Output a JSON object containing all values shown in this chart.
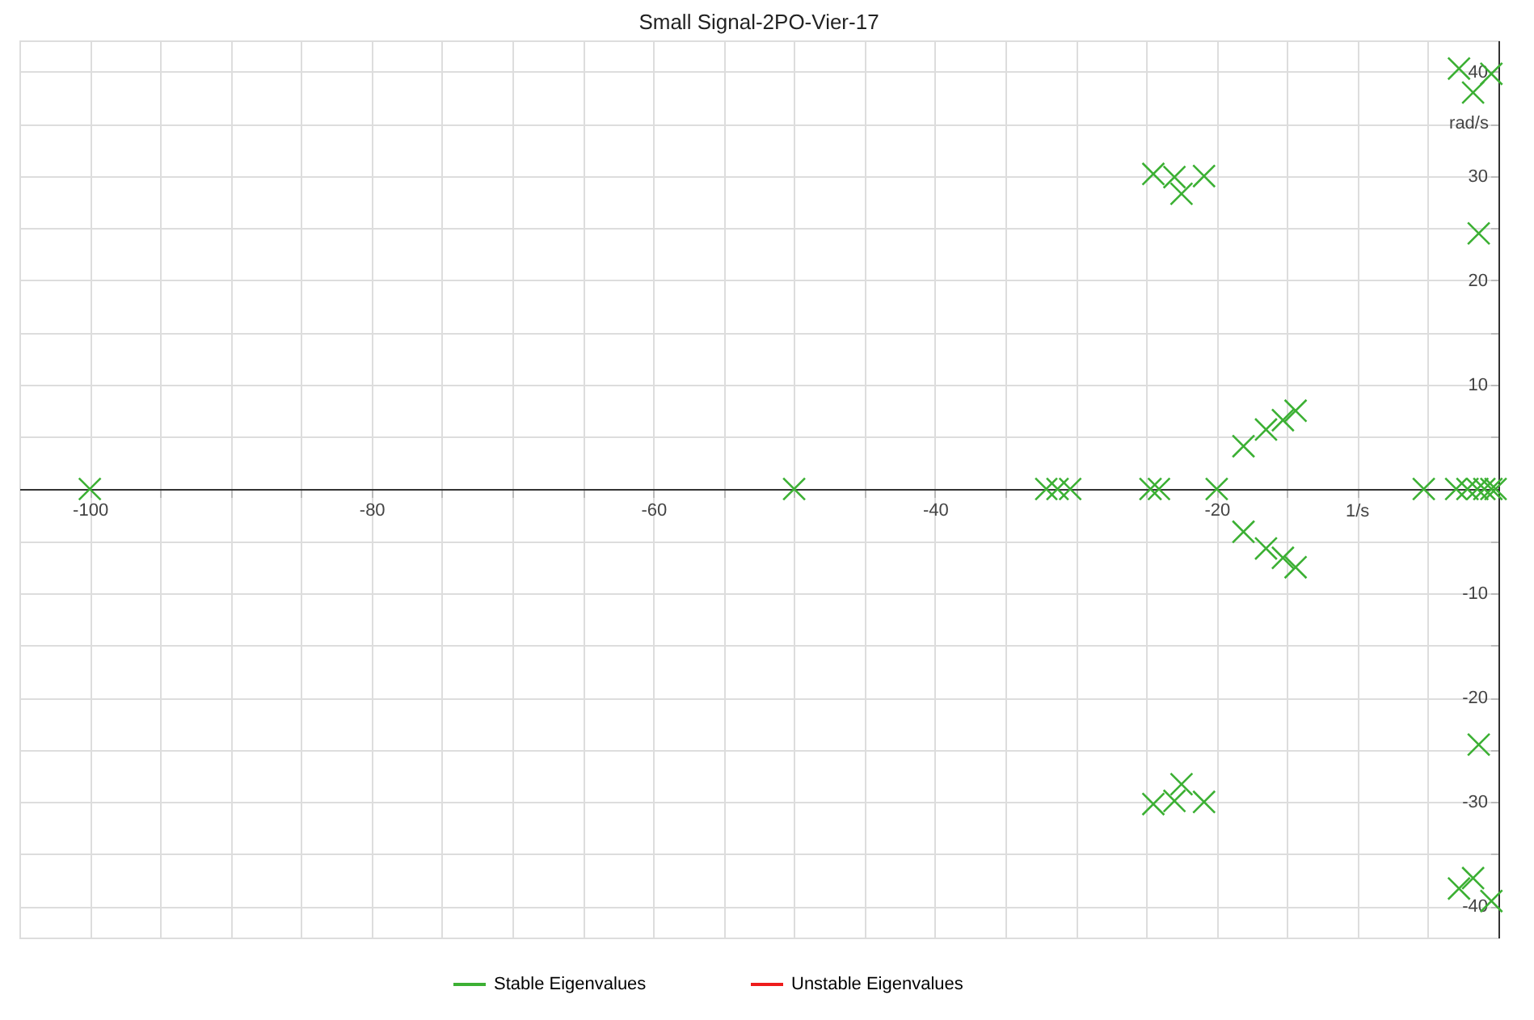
{
  "chart_data": {
    "type": "scatter",
    "title": "Small Signal-2PO-Vier-17",
    "xlim": [
      -105,
      0
    ],
    "ylim": [
      -43,
      43
    ],
    "xticks": [
      {
        "value": -100,
        "label": "-100"
      },
      {
        "value": -95,
        "label": null
      },
      {
        "value": -90,
        "label": null
      },
      {
        "value": -85,
        "label": null
      },
      {
        "value": -80,
        "label": "-80"
      },
      {
        "value": -75,
        "label": null
      },
      {
        "value": -70,
        "label": null
      },
      {
        "value": -65,
        "label": null
      },
      {
        "value": -60,
        "label": "-60"
      },
      {
        "value": -55,
        "label": null
      },
      {
        "value": -50,
        "label": null
      },
      {
        "value": -45,
        "label": null
      },
      {
        "value": -40,
        "label": "-40"
      },
      {
        "value": -35,
        "label": null
      },
      {
        "value": -30,
        "label": null
      },
      {
        "value": -25,
        "label": null
      },
      {
        "value": -20,
        "label": "-20"
      },
      {
        "value": -15,
        "label": null
      },
      {
        "value": -10,
        "label": null
      },
      {
        "value": -5,
        "label": null
      }
    ],
    "yticks": [
      {
        "value": -40,
        "label": "-40"
      },
      {
        "value": -35,
        "label": null
      },
      {
        "value": -30,
        "label": "-30"
      },
      {
        "value": -25,
        "label": null
      },
      {
        "value": -20,
        "label": "-20"
      },
      {
        "value": -15,
        "label": null
      },
      {
        "value": -10,
        "label": "-10"
      },
      {
        "value": -5,
        "label": null
      },
      {
        "value": 5,
        "label": null
      },
      {
        "value": 10,
        "label": "10"
      },
      {
        "value": 15,
        "label": null
      },
      {
        "value": 20,
        "label": "20"
      },
      {
        "value": 25,
        "label": null
      },
      {
        "value": 30,
        "label": "30"
      },
      {
        "value": 35,
        "label": null
      },
      {
        "value": 40,
        "label": "40"
      }
    ],
    "xlabel": "1/s",
    "ylabel": "rad/s",
    "grid": true,
    "legend": "bottom",
    "marker": "cross",
    "series": [
      {
        "name": "Stable Eigenvalues",
        "color": "#3cb034",
        "x": [
          -100,
          -50,
          -32.1,
          -31.3,
          -30.4,
          -24.7,
          -24.1,
          -20,
          -5.3,
          -3.0,
          -2.2,
          -1.5,
          -1.0,
          -0.5,
          -0.2,
          -24.5,
          -23.0,
          -22.5,
          -20.9,
          -24.5,
          -23.0,
          -22.5,
          -20.9,
          -18.1,
          -16.5,
          -15.3,
          -14.4,
          -18.1,
          -16.5,
          -15.3,
          -14.4,
          -2.8,
          -1.8,
          -0.5,
          -2.8,
          -1.8,
          -0.5,
          -1.4,
          -1.4
        ],
        "values": [
          0,
          0,
          0,
          0,
          0,
          0,
          0,
          0,
          0,
          0,
          0,
          0,
          0,
          0,
          0,
          30.2,
          29.9,
          28.3,
          30.0,
          -30.2,
          -29.9,
          -28.3,
          -30.0,
          4.1,
          5.7,
          6.6,
          7.5,
          -4.1,
          -5.7,
          -6.6,
          -7.5,
          40.3,
          38.0,
          39.8,
          -38.3,
          -37.3,
          -39.5,
          24.5,
          -24.5
        ]
      },
      {
        "name": "Unstable Eigenvalues",
        "color": "#ee1c1c"
      }
    ]
  }
}
